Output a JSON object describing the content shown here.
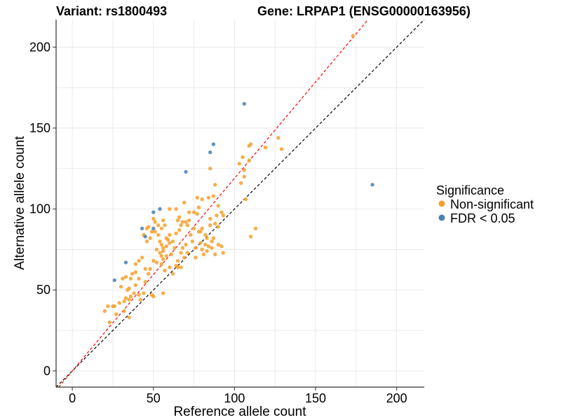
{
  "chart_data": {
    "type": "scatter",
    "title_left": "Variant: rs1800493",
    "title_right": "Gene: LRPAP1 (ENSG00000163956)",
    "xlabel": "Reference allele count",
    "ylabel": "Alternative allele count",
    "xlim": [
      -10,
      217
    ],
    "ylim": [
      -10,
      217
    ],
    "xticks": [
      0,
      50,
      100,
      150,
      200
    ],
    "yticks": [
      0,
      50,
      100,
      150,
      200
    ],
    "grid": true,
    "legend": {
      "title": "Significance",
      "position": "right",
      "entries": [
        {
          "label": "Non-significant",
          "color": "#f5a02e"
        },
        {
          "label": "FDR < 0.05",
          "color": "#4e7fb0"
        }
      ]
    },
    "reference_lines": [
      {
        "name": "identity",
        "slope": 1,
        "intercept": 0,
        "color": "#000000",
        "style": "dashed"
      },
      {
        "name": "fit",
        "slope": 1.19,
        "intercept": 0,
        "color": "#ff0000",
        "style": "dashed"
      }
    ],
    "series": [
      {
        "name": "Non-significant",
        "color": "#f5a02e",
        "points": [
          [
            173,
            207
          ],
          [
            127,
            144
          ],
          [
            119,
            138
          ],
          [
            110,
            140
          ],
          [
            109,
            139
          ],
          [
            103,
            128
          ],
          [
            105,
            132
          ],
          [
            109,
            130
          ],
          [
            106,
            124
          ],
          [
            129,
            137
          ],
          [
            106,
            120
          ],
          [
            104,
            116
          ],
          [
            107,
            106
          ],
          [
            113,
            88
          ],
          [
            110,
            83
          ],
          [
            85,
            125
          ],
          [
            84,
            107
          ],
          [
            88,
            115
          ],
          [
            87,
            108
          ],
          [
            90,
            102
          ],
          [
            92,
            98
          ],
          [
            93,
            96
          ],
          [
            89,
            96
          ],
          [
            85,
            94
          ],
          [
            88,
            91
          ],
          [
            90,
            89
          ],
          [
            87,
            82
          ],
          [
            86,
            80
          ],
          [
            80,
            106
          ],
          [
            77,
            107
          ],
          [
            78,
            101
          ],
          [
            77,
            97
          ],
          [
            75,
            98
          ],
          [
            72,
            98
          ],
          [
            69,
            104
          ],
          [
            72,
            93
          ],
          [
            70,
            92
          ],
          [
            71,
            90
          ],
          [
            68,
            92
          ],
          [
            67,
            90
          ],
          [
            66,
            87
          ],
          [
            64,
            85
          ],
          [
            75,
            88
          ],
          [
            73,
            84
          ],
          [
            74,
            80
          ],
          [
            78,
            86
          ],
          [
            80,
            88
          ],
          [
            82,
            84
          ],
          [
            79,
            79
          ],
          [
            82,
            78
          ],
          [
            80,
            75
          ],
          [
            81,
            72
          ],
          [
            84,
            77
          ],
          [
            83,
            74
          ],
          [
            86,
            76
          ],
          [
            90,
            78
          ],
          [
            92,
            77
          ],
          [
            93,
            73
          ],
          [
            88,
            72
          ],
          [
            76,
            76
          ],
          [
            76,
            70
          ],
          [
            71,
            73
          ],
          [
            70,
            78
          ],
          [
            68,
            76
          ],
          [
            67,
            73
          ],
          [
            65,
            68
          ],
          [
            65,
            64
          ],
          [
            61,
            72
          ],
          [
            60,
            79
          ],
          [
            59,
            81
          ],
          [
            58,
            77
          ],
          [
            56,
            76
          ],
          [
            55,
            78
          ],
          [
            53,
            84
          ],
          [
            54,
            80
          ],
          [
            57,
            90
          ],
          [
            56,
            93
          ],
          [
            55,
            88
          ],
          [
            53,
            90
          ],
          [
            51,
            92
          ],
          [
            50,
            94
          ],
          [
            47,
            89
          ],
          [
            51,
            86
          ],
          [
            49,
            86
          ],
          [
            48,
            82
          ],
          [
            46,
            80
          ],
          [
            44,
            84
          ],
          [
            55,
            71
          ],
          [
            56,
            69
          ],
          [
            58,
            71
          ],
          [
            55,
            66
          ],
          [
            52,
            67
          ],
          [
            50,
            68
          ],
          [
            48,
            63
          ],
          [
            45,
            63
          ],
          [
            41,
            68
          ],
          [
            43,
            70
          ],
          [
            39,
            66
          ],
          [
            37,
            60
          ],
          [
            39,
            61
          ],
          [
            41,
            57
          ],
          [
            39,
            53
          ],
          [
            36,
            57
          ],
          [
            35,
            51
          ],
          [
            38,
            48
          ],
          [
            34,
            50
          ],
          [
            33,
            58
          ],
          [
            31,
            57
          ],
          [
            30,
            52
          ],
          [
            36,
            46
          ],
          [
            33,
            45
          ],
          [
            35,
            44
          ],
          [
            32,
            43
          ],
          [
            29,
            42
          ],
          [
            32,
            37
          ],
          [
            35,
            33
          ],
          [
            25,
            40
          ],
          [
            26,
            40
          ],
          [
            22,
            40
          ],
          [
            20,
            37
          ],
          [
            23,
            30
          ],
          [
            27,
            35
          ],
          [
            44,
            48
          ],
          [
            41,
            47
          ],
          [
            42,
            44
          ],
          [
            49,
            47
          ],
          [
            50,
            46
          ],
          [
            56,
            48
          ],
          [
            45,
            55
          ],
          [
            47,
            60
          ],
          [
            63,
            76
          ],
          [
            62,
            80
          ],
          [
            60,
            84
          ],
          [
            65,
            93
          ],
          [
            66,
            95
          ],
          [
            64,
            100
          ],
          [
            60,
            100
          ],
          [
            58,
            82
          ],
          [
            85,
            90
          ],
          [
            79,
            86
          ],
          [
            83,
            82
          ],
          [
            46,
            88
          ],
          [
            52,
            75
          ],
          [
            54,
            73
          ],
          [
            56,
            74
          ],
          [
            57,
            62
          ],
          [
            60,
            64
          ],
          [
            62,
            60
          ],
          [
            64,
            65
          ],
          [
            67,
            64
          ],
          [
            69,
            70
          ]
        ]
      },
      {
        "name": "FDR < 0.05",
        "color": "#4e7fb0",
        "points": [
          [
            106,
            165
          ],
          [
            87,
            140
          ],
          [
            85,
            135
          ],
          [
            70,
            123
          ],
          [
            185,
            115
          ],
          [
            54,
            100
          ],
          [
            50,
            98
          ],
          [
            43,
            88
          ],
          [
            50,
            88
          ],
          [
            45,
            83
          ],
          [
            33,
            67
          ],
          [
            26,
            56
          ]
        ]
      }
    ]
  }
}
